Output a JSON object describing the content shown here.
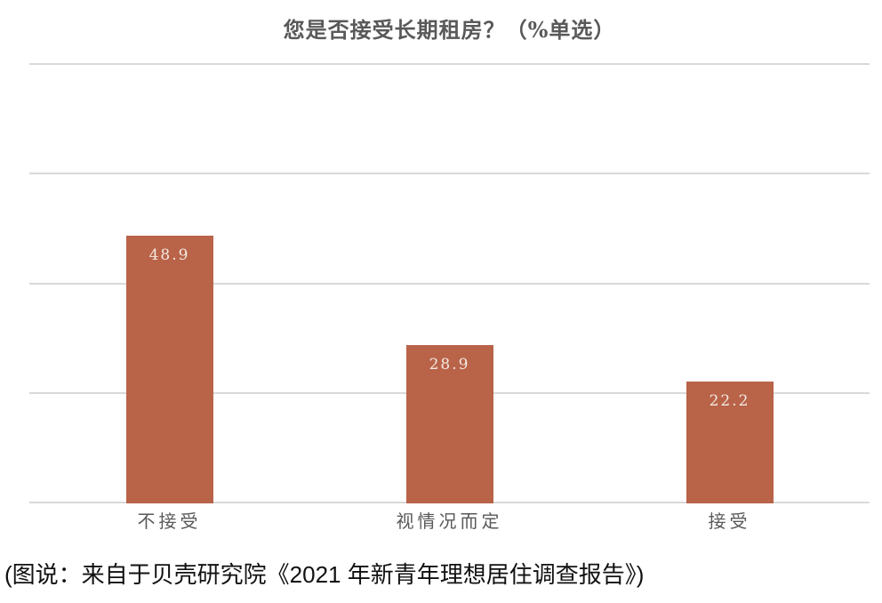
{
  "chart_data": {
    "type": "bar",
    "title": "您是否接受长期租房？（%单选）",
    "categories": [
      "不接受",
      "视情况而定",
      "接受"
    ],
    "values": [
      48.9,
      28.9,
      22.2
    ],
    "value_labels": [
      "48.9",
      "28.9",
      "22.2"
    ],
    "xlabel": "",
    "ylabel": "",
    "ylim": [
      0,
      80
    ],
    "gridline_step": 20,
    "grid": "horizontal-only",
    "y_axis_tick_labels_visible": false,
    "legend": "none",
    "bar_color": "#B96349",
    "value_label_color": "#F2E9E0",
    "gridline_color": "#D9D9D9",
    "title_color": "#595959",
    "category_label_color": "#595959"
  },
  "caption": "(图说：来自于贝壳研究院《2021 年新青年理想居住调查报告》)"
}
